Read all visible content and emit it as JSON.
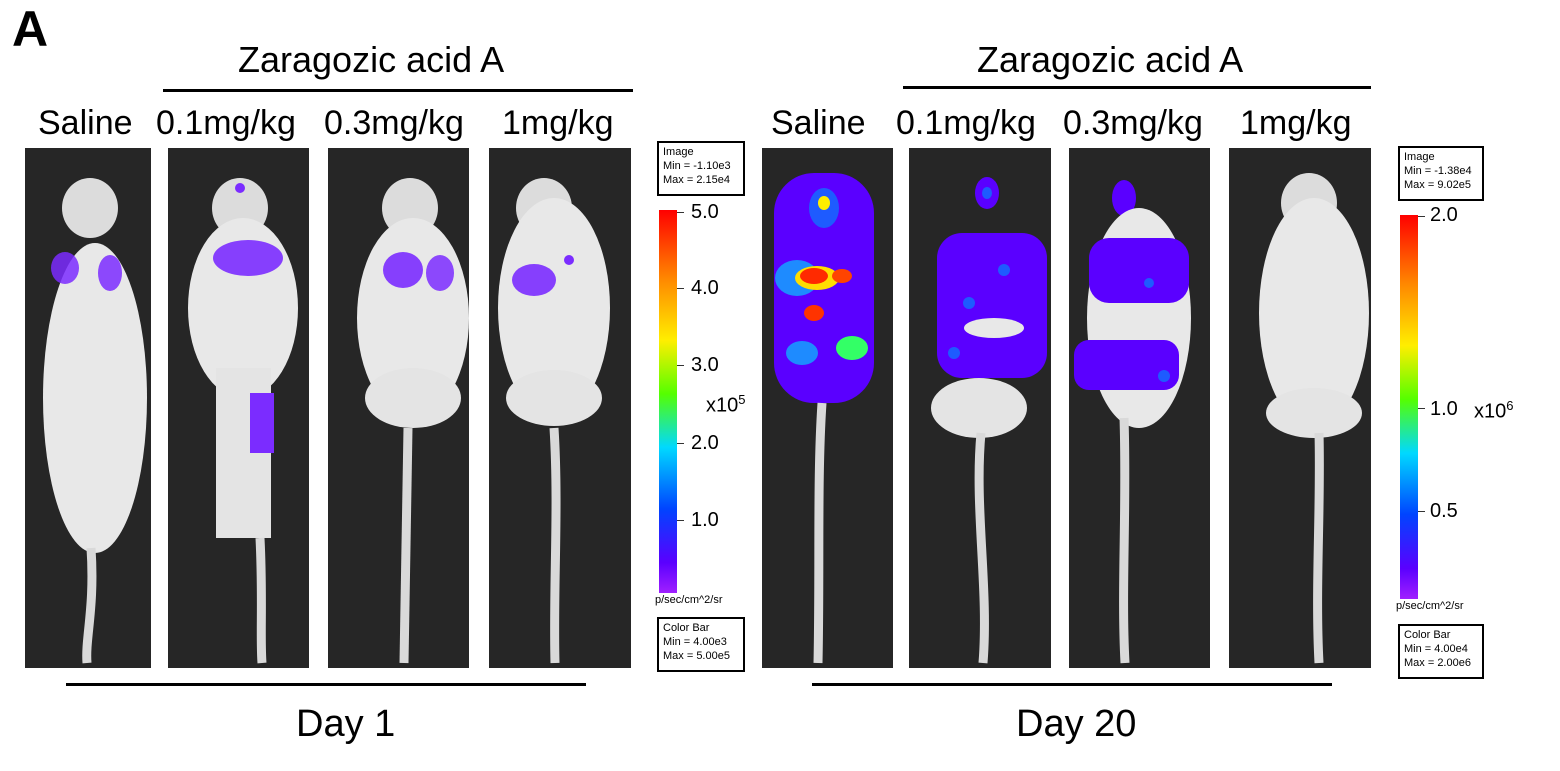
{
  "panel_label": "A",
  "day1": {
    "treatment": "Zaragozic acid A",
    "columns": [
      "Saline",
      "0.1mg/kg",
      "0.3mg/kg",
      "1mg/kg"
    ],
    "timepoint": "Day 1",
    "image_box": {
      "title": "Image",
      "min": "Min = -1.10e3",
      "max": "Max = 2.15e4"
    },
    "colorbar_box": {
      "title": "Color Bar",
      "min": "Min = 4.00e3",
      "max": "Max = 5.00e5"
    },
    "colorbar_ticks": [
      "5.0",
      "4.0",
      "3.0",
      "2.0",
      "1.0"
    ],
    "multiplier_base": "x10",
    "multiplier_exp": "5",
    "unit": "p/sec/cm^2/sr"
  },
  "day20": {
    "treatment": "Zaragozic acid A",
    "columns": [
      "Saline",
      "0.1mg/kg",
      "0.3mg/kg",
      "1mg/kg"
    ],
    "timepoint": "Day 20",
    "image_box": {
      "title": "Image",
      "min": "Min = -1.38e4",
      "max": "Max = 9.02e5"
    },
    "colorbar_box": {
      "title": "Color Bar",
      "min": "Min = 4.00e4",
      "max": "Max = 2.00e6"
    },
    "colorbar_ticks": [
      "2.0",
      "1.0",
      "0.5"
    ],
    "multiplier_base": "x10",
    "multiplier_exp": "6",
    "unit": "p/sec/cm^2/sr"
  },
  "colors": {
    "background_dark": "#2a2a2a",
    "mouse_body": "#e6e6e6",
    "signal_low": "#7b2cff",
    "signal_mid": "#1e5bff",
    "signal_high": "#ff2a00"
  }
}
